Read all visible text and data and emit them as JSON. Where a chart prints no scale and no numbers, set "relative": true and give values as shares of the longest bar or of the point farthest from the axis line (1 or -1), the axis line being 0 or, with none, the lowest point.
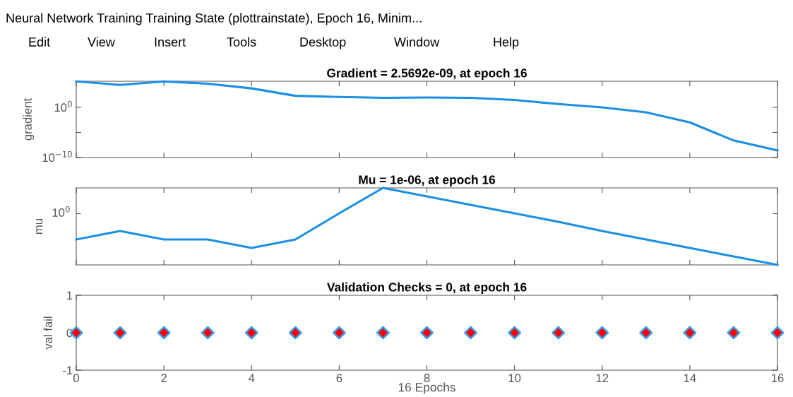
{
  "chart_data": [
    {
      "type": "line",
      "title": "Gradient = 2.5692e-09, at epoch 16",
      "ylabel": "gradient",
      "log": "y",
      "x": [
        0,
        1,
        2,
        3,
        4,
        5,
        6,
        7,
        8,
        9,
        10,
        11,
        12,
        13,
        14,
        15,
        16
      ],
      "series": [
        {
          "color": "#1a8fe3",
          "values": [
            150000,
            30000,
            150000,
            50000,
            6000,
            200,
            120,
            80,
            95,
            80,
            30,
            4.5,
            1,
            0.1,
            0.001,
            2.5e-07,
            2.5692e-09
          ]
        }
      ],
      "xlim": [
        0,
        16
      ],
      "xticks": [
        0,
        2,
        4,
        6,
        8,
        10,
        12,
        14,
        16
      ],
      "ylim": [
        1e-10,
        160000
      ],
      "yticks": [
        {
          "value": 1e-10,
          "label": "10$^{−10}$"
        },
        {
          "value": 1e-05,
          "label": null
        },
        {
          "value": 1,
          "label": "10$^{0}$"
        }
      ],
      "tick_labels": "y",
      "grid": false,
      "legend": false,
      "marker": "none",
      "line_style": "solid",
      "annotations": [
        "Neural Network Training Training State (plottrainstate), Epoch 16, Minim...",
        "Edit",
        "View",
        "Insert",
        "Tools",
        "Desktop",
        "Window",
        "Help"
      ]
    },
    {
      "type": "line",
      "title": "Mu = 1e-06, at epoch 16",
      "ylabel": "mu",
      "relative": true,
      "x": [
        0,
        1,
        2,
        3,
        4,
        5,
        6,
        7,
        8,
        9,
        10,
        11,
        12,
        13,
        14,
        15,
        16
      ],
      "series": [
        {
          "color": "#1a8fe3",
          "values": [
            0.33,
            0.44,
            0.33,
            0.33,
            0.22,
            0.33,
            0.67,
            1,
            0.89,
            0.78,
            0.67,
            0.56,
            0.44,
            0.33,
            0.22,
            0.11,
            0
          ]
        }
      ],
      "xlim": [
        0,
        16
      ],
      "xticks": [
        0,
        2,
        4,
        6,
        8,
        10,
        12,
        14,
        16
      ],
      "annotations": [
        "10$^{0}$"
      ],
      "tick_labels": false,
      "grid": false,
      "legend": false,
      "marker": "none",
      "line_style": "solid"
    },
    {
      "type": "scatter",
      "title": "Validation Checks = 0, at epoch 16",
      "xlabel": "16 Epochs",
      "ylabel": "val fail",
      "x": [
        0,
        1,
        2,
        3,
        4,
        5,
        6,
        7,
        8,
        9,
        10,
        11,
        12,
        13,
        14,
        15,
        16
      ],
      "series": [
        {
          "color": "#ff0000",
          "values": [
            0,
            0,
            0,
            0,
            0,
            0,
            0,
            0,
            0,
            0,
            0,
            0,
            0,
            0,
            0,
            0,
            0
          ]
        }
      ],
      "xlim": [
        0,
        16
      ],
      "xticks": [
        0,
        2,
        4,
        6,
        8,
        10,
        12,
        14,
        16
      ],
      "ylim": [
        -1,
        1
      ],
      "yticks": [
        -1,
        0,
        1
      ],
      "grid": false,
      "legend": false,
      "marker": "diamond"
    }
  ]
}
